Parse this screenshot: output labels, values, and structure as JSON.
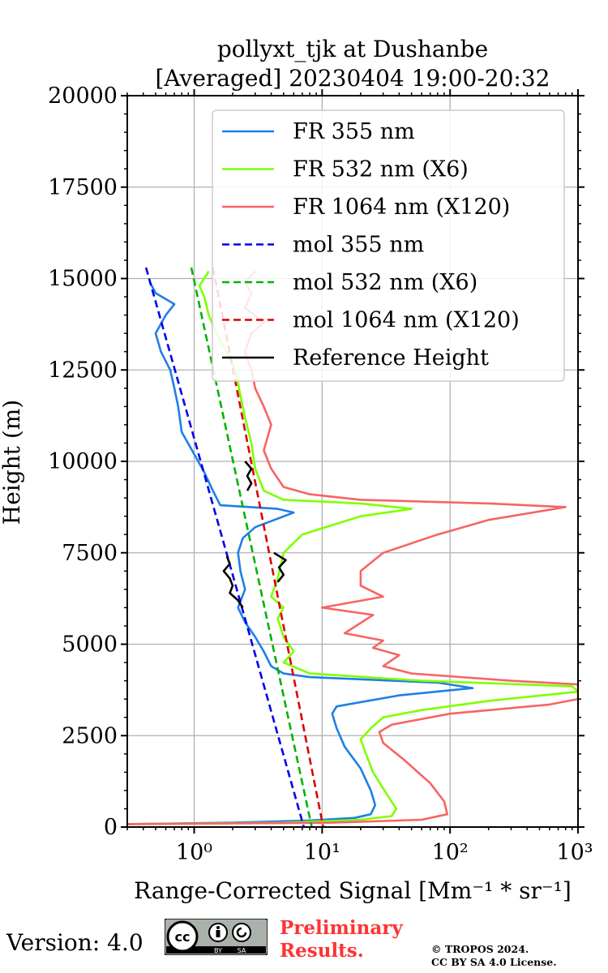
{
  "chart_data": {
    "type": "line",
    "title_lines": [
      "pollyxt_tjk at Dushanbe",
      "[Averaged] 20230404 19:00-20:32"
    ],
    "xlabel": "Range-Corrected Signal [Mm⁻¹ * sr⁻¹]",
    "ylabel": "Height (m)",
    "xscale": "log",
    "xlim": [
      0.3,
      1000
    ],
    "ylim": [
      0,
      20000
    ],
    "x_ticks": [
      1,
      10,
      100,
      1000
    ],
    "x_tick_labels": [
      "10⁰",
      "10¹",
      "10²",
      "10³"
    ],
    "y_ticks": [
      0,
      2500,
      5000,
      7500,
      10000,
      12500,
      15000,
      17500,
      20000
    ],
    "y_tick_labels": [
      "0",
      "2500",
      "5000",
      "7500",
      "10000",
      "12500",
      "15000",
      "17500",
      "20000"
    ],
    "grid": true,
    "legend_position": "top-right",
    "series": [
      {
        "name": "FR 355 nm",
        "color": "#1f7fe6",
        "style": "solid",
        "points": [
          [
            0.3,
            80
          ],
          [
            2,
            120
          ],
          [
            8,
            180
          ],
          [
            18,
            250
          ],
          [
            24,
            350
          ],
          [
            26,
            600
          ],
          [
            24,
            1000
          ],
          [
            20,
            1600
          ],
          [
            15,
            2200
          ],
          [
            13,
            2700
          ],
          [
            12,
            3100
          ],
          [
            13,
            3300
          ],
          [
            40,
            3600
          ],
          [
            150,
            3800
          ],
          [
            80,
            3950
          ],
          [
            8,
            4100
          ],
          [
            5,
            4200
          ],
          [
            4,
            4400
          ],
          [
            3.5,
            4800
          ],
          [
            3,
            5200
          ],
          [
            2.5,
            5600
          ],
          [
            2.2,
            6000
          ],
          [
            2.5,
            6500
          ],
          [
            2.3,
            7000
          ],
          [
            2.2,
            7500
          ],
          [
            2.4,
            7900
          ],
          [
            3,
            8200
          ],
          [
            6,
            8600
          ],
          [
            4.5,
            8700
          ],
          [
            1.6,
            8800
          ],
          [
            1.4,
            9200
          ],
          [
            1.2,
            9700
          ],
          [
            1,
            10200
          ],
          [
            0.8,
            10800
          ],
          [
            0.75,
            11500
          ],
          [
            0.7,
            12000
          ],
          [
            0.65,
            12500
          ],
          [
            0.55,
            13000
          ],
          [
            0.5,
            13500
          ],
          [
            0.6,
            14000
          ],
          [
            0.7,
            14300
          ],
          [
            0.5,
            14600
          ],
          [
            0.45,
            14900
          ]
        ]
      },
      {
        "name": "FR 532 nm (X6)",
        "color": "#7fff00",
        "style": "solid",
        "points": [
          [
            0.3,
            80
          ],
          [
            5,
            120
          ],
          [
            20,
            200
          ],
          [
            35,
            300
          ],
          [
            38,
            500
          ],
          [
            32,
            900
          ],
          [
            25,
            1500
          ],
          [
            22,
            2000
          ],
          [
            20,
            2400
          ],
          [
            24,
            2700
          ],
          [
            30,
            3000
          ],
          [
            60,
            3200
          ],
          [
            200,
            3450
          ],
          [
            1000,
            3700
          ],
          [
            900,
            3850
          ],
          [
            60,
            4000
          ],
          [
            8,
            4200
          ],
          [
            5,
            4500
          ],
          [
            6,
            4800
          ],
          [
            5,
            5200
          ],
          [
            4.5,
            5700
          ],
          [
            5,
            6000
          ],
          [
            4,
            6300
          ],
          [
            4.5,
            6800
          ],
          [
            5,
            7500
          ],
          [
            7,
            8000
          ],
          [
            20,
            8500
          ],
          [
            50,
            8700
          ],
          [
            20,
            8850
          ],
          [
            5,
            8950
          ],
          [
            3.5,
            9200
          ],
          [
            3,
            9800
          ],
          [
            2.8,
            10500
          ],
          [
            2.5,
            11200
          ],
          [
            2.3,
            11800
          ],
          [
            2.1,
            12500
          ],
          [
            1.8,
            13000
          ],
          [
            1.5,
            13500
          ],
          [
            1.3,
            14000
          ],
          [
            1.2,
            14500
          ],
          [
            1.1,
            14800
          ],
          [
            1.3,
            15200
          ]
        ]
      },
      {
        "name": "FR 1064 nm (X120)",
        "color": "#f86464",
        "style": "solid",
        "points": [
          [
            0.3,
            80
          ],
          [
            12,
            120
          ],
          [
            60,
            200
          ],
          [
            95,
            350
          ],
          [
            90,
            700
          ],
          [
            70,
            1200
          ],
          [
            45,
            1800
          ],
          [
            30,
            2300
          ],
          [
            28,
            2600
          ],
          [
            35,
            2800
          ],
          [
            100,
            3100
          ],
          [
            600,
            3350
          ],
          [
            1000,
            3500
          ],
          [
            1000,
            3900
          ],
          [
            300,
            4000
          ],
          [
            50,
            4200
          ],
          [
            30,
            4400
          ],
          [
            40,
            4700
          ],
          [
            25,
            4900
          ],
          [
            30,
            5100
          ],
          [
            15,
            5300
          ],
          [
            25,
            5800
          ],
          [
            10,
            6000
          ],
          [
            30,
            6300
          ],
          [
            20,
            6600
          ],
          [
            20,
            7000
          ],
          [
            30,
            7500
          ],
          [
            80,
            8000
          ],
          [
            200,
            8400
          ],
          [
            800,
            8750
          ],
          [
            200,
            8850
          ],
          [
            20,
            8950
          ],
          [
            8,
            9100
          ],
          [
            5,
            9300
          ],
          [
            4,
            9800
          ],
          [
            3.5,
            10300
          ],
          [
            4,
            11000
          ],
          [
            3.5,
            11500
          ],
          [
            3,
            12000
          ],
          [
            2.8,
            12500
          ],
          [
            2.5,
            13000
          ],
          [
            2.8,
            13500
          ],
          [
            3.5,
            13800
          ],
          [
            2.5,
            14200
          ],
          [
            2.8,
            14600
          ],
          [
            2.5,
            14900
          ],
          [
            3,
            15200
          ]
        ]
      },
      {
        "name": "mol 355 nm",
        "color": "#0000ee",
        "style": "dashed",
        "points": [
          [
            0.42,
            15300
          ],
          [
            7.2,
            0
          ]
        ]
      },
      {
        "name": "mol 532 nm (X6)",
        "color": "#00b300",
        "style": "dashed",
        "points": [
          [
            0.95,
            15300
          ],
          [
            8.3,
            0
          ]
        ]
      },
      {
        "name": "mol 1064 nm (X120)",
        "color": "#dd0000",
        "style": "dashed",
        "points": [
          [
            1.4,
            15300
          ],
          [
            10.2,
            0
          ]
        ]
      },
      {
        "name": "Reference Height",
        "color": "#000000",
        "style": "solid",
        "segments": [
          [
            [
              1.8,
              7400
            ],
            [
              1.9,
              7200
            ],
            [
              1.7,
              7000
            ],
            [
              1.9,
              6800
            ],
            [
              2,
              6600
            ],
            [
              1.9,
              6400
            ],
            [
              2.2,
              6200
            ],
            [
              2.4,
              6000
            ]
          ],
          [
            [
              2.6,
              9200
            ],
            [
              2.8,
              9400
            ],
            [
              2.6,
              9600
            ],
            [
              2.8,
              9800
            ],
            [
              2.5,
              10000
            ]
          ],
          [
            [
              4.2,
              7500
            ],
            [
              5.2,
              7300
            ],
            [
              4.6,
              7100
            ],
            [
              5,
              6900
            ],
            [
              4.5,
              6700
            ]
          ]
        ]
      }
    ]
  },
  "footer": {
    "version": "Version: 4.0",
    "preliminary": [
      "Preliminary",
      "Results."
    ],
    "copyright": [
      "© TROPOS 2024.",
      "CC BY SA 4.0 License."
    ],
    "cc_badge": [
      "cc",
      "BY",
      "SA"
    ]
  }
}
